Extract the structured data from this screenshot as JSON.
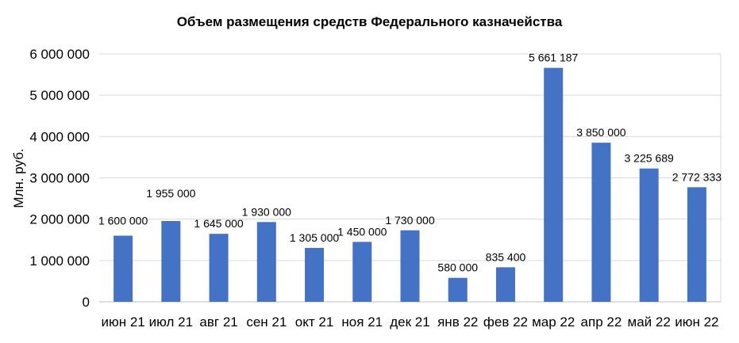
{
  "chart_data": {
    "type": "bar",
    "title": "Объем размещения средств Федерального казначейства",
    "xlabel": "",
    "ylabel": "Млн. руб.",
    "categories": [
      "июн 21",
      "июл 21",
      "авг 21",
      "сен 21",
      "окт 21",
      "ноя 21",
      "дек 21",
      "янв 22",
      "фев 22",
      "мар 22",
      "апр 22",
      "май 22",
      "июн 22"
    ],
    "values": [
      1600000,
      1955000,
      1645000,
      1930000,
      1305000,
      1450000,
      1730000,
      580000,
      835400,
      5661187,
      3850000,
      3225689,
      2772333
    ],
    "value_labels": [
      "1 600 000",
      "1 955 000",
      "1 645 000",
      "1 930 000",
      "1 305 000",
      "1 450 000",
      "1 730 000",
      "580 000",
      "835 400",
      "5 661 187",
      "3 850 000",
      "3 225 689",
      "2 772 333"
    ],
    "ylim": [
      0,
      6000000
    ],
    "yticks": [
      0,
      1000000,
      2000000,
      3000000,
      4000000,
      5000000,
      6000000
    ],
    "ytick_labels": [
      "0",
      "1 000 000",
      "2 000 000",
      "3 000 000",
      "4 000 000",
      "5 000 000",
      "6 000 000"
    ],
    "grid": true,
    "legend": "none",
    "colors": {
      "bar": "#4472C4",
      "grid": "#D9D9D9",
      "axis": "#BFBFBF"
    }
  }
}
